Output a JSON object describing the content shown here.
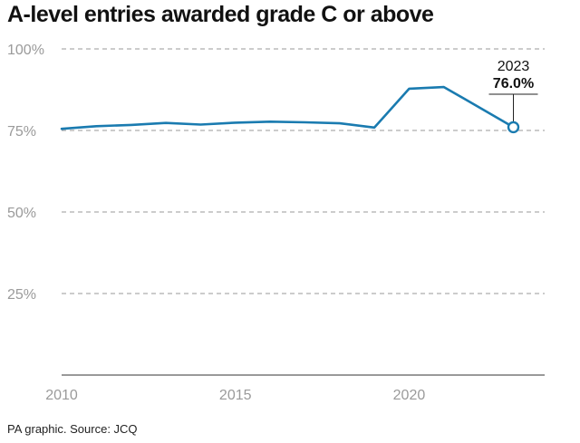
{
  "title": "A-level entries awarded grade C or above",
  "source": "PA graphic. Source: JCQ",
  "colors": {
    "line": "#1a7bb0",
    "grid": "#9a9a9a",
    "axis": "#333333"
  },
  "chart_data": {
    "type": "line",
    "title": "A-level entries awarded grade C or above",
    "xlabel": "",
    "ylabel": "",
    "xlim": [
      2010,
      2023.9
    ],
    "ylim": [
      0,
      100
    ],
    "x_ticks": [
      2010,
      2015,
      2020
    ],
    "x_tick_labels": [
      "2010",
      "2015",
      "2020"
    ],
    "y_ticks": [
      25,
      50,
      75,
      100
    ],
    "y_tick_labels": [
      "25%",
      "50%",
      "75%",
      "100%"
    ],
    "grid": "horizontal dashed",
    "series": [
      {
        "x": [
          2010,
          2011,
          2012,
          2013,
          2014,
          2015,
          2016,
          2017,
          2018,
          2019,
          2020,
          2021,
          2022,
          2023
        ],
        "values": [
          75.5,
          76.3,
          76.7,
          77.3,
          76.8,
          77.4,
          77.7,
          77.5,
          77.2,
          75.9,
          87.8,
          88.3,
          82.2,
          76.0
        ]
      }
    ],
    "annotation": {
      "x": 2023,
      "y": 76.0,
      "year_label": "2023",
      "value_label": "76.0%"
    }
  }
}
